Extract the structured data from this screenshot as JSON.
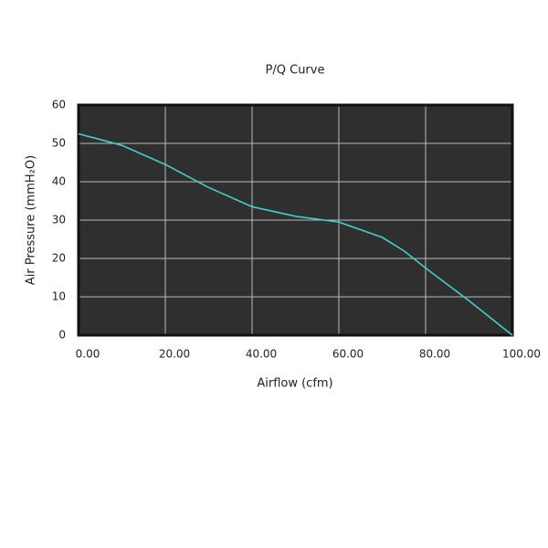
{
  "chart_data": {
    "type": "line",
    "title": "P/Q Curve",
    "x_label": "Airflow (cfm)",
    "y_label": "Air Pressure (mmH₂O)",
    "series": [
      {
        "name": "P/Q Curve",
        "color": "#3fd0d0",
        "x": [
          0,
          5,
          10,
          20,
          30,
          40,
          50,
          60,
          70,
          75,
          80,
          90,
          100
        ],
        "values": [
          52.5,
          51,
          49.5,
          44.5,
          38.5,
          33.5,
          31,
          29.5,
          25.5,
          22,
          17.5,
          9,
          0
        ]
      }
    ],
    "xlim": [
      0,
      100
    ],
    "xticks": [
      {
        "value": 0,
        "label": "0.00"
      },
      {
        "value": 20,
        "label": "20.00"
      },
      {
        "value": 40,
        "label": "40.00"
      },
      {
        "value": 60,
        "label": "60.00"
      },
      {
        "value": 80,
        "label": "80.00"
      },
      {
        "value": 100,
        "label": "100.00"
      }
    ],
    "ylim": [
      0,
      60
    ],
    "yticks": [
      0,
      10,
      20,
      30,
      40,
      50,
      60
    ],
    "grid": true,
    "plot_background": "#2f2f2f",
    "title_color": "#3fb8c0"
  }
}
